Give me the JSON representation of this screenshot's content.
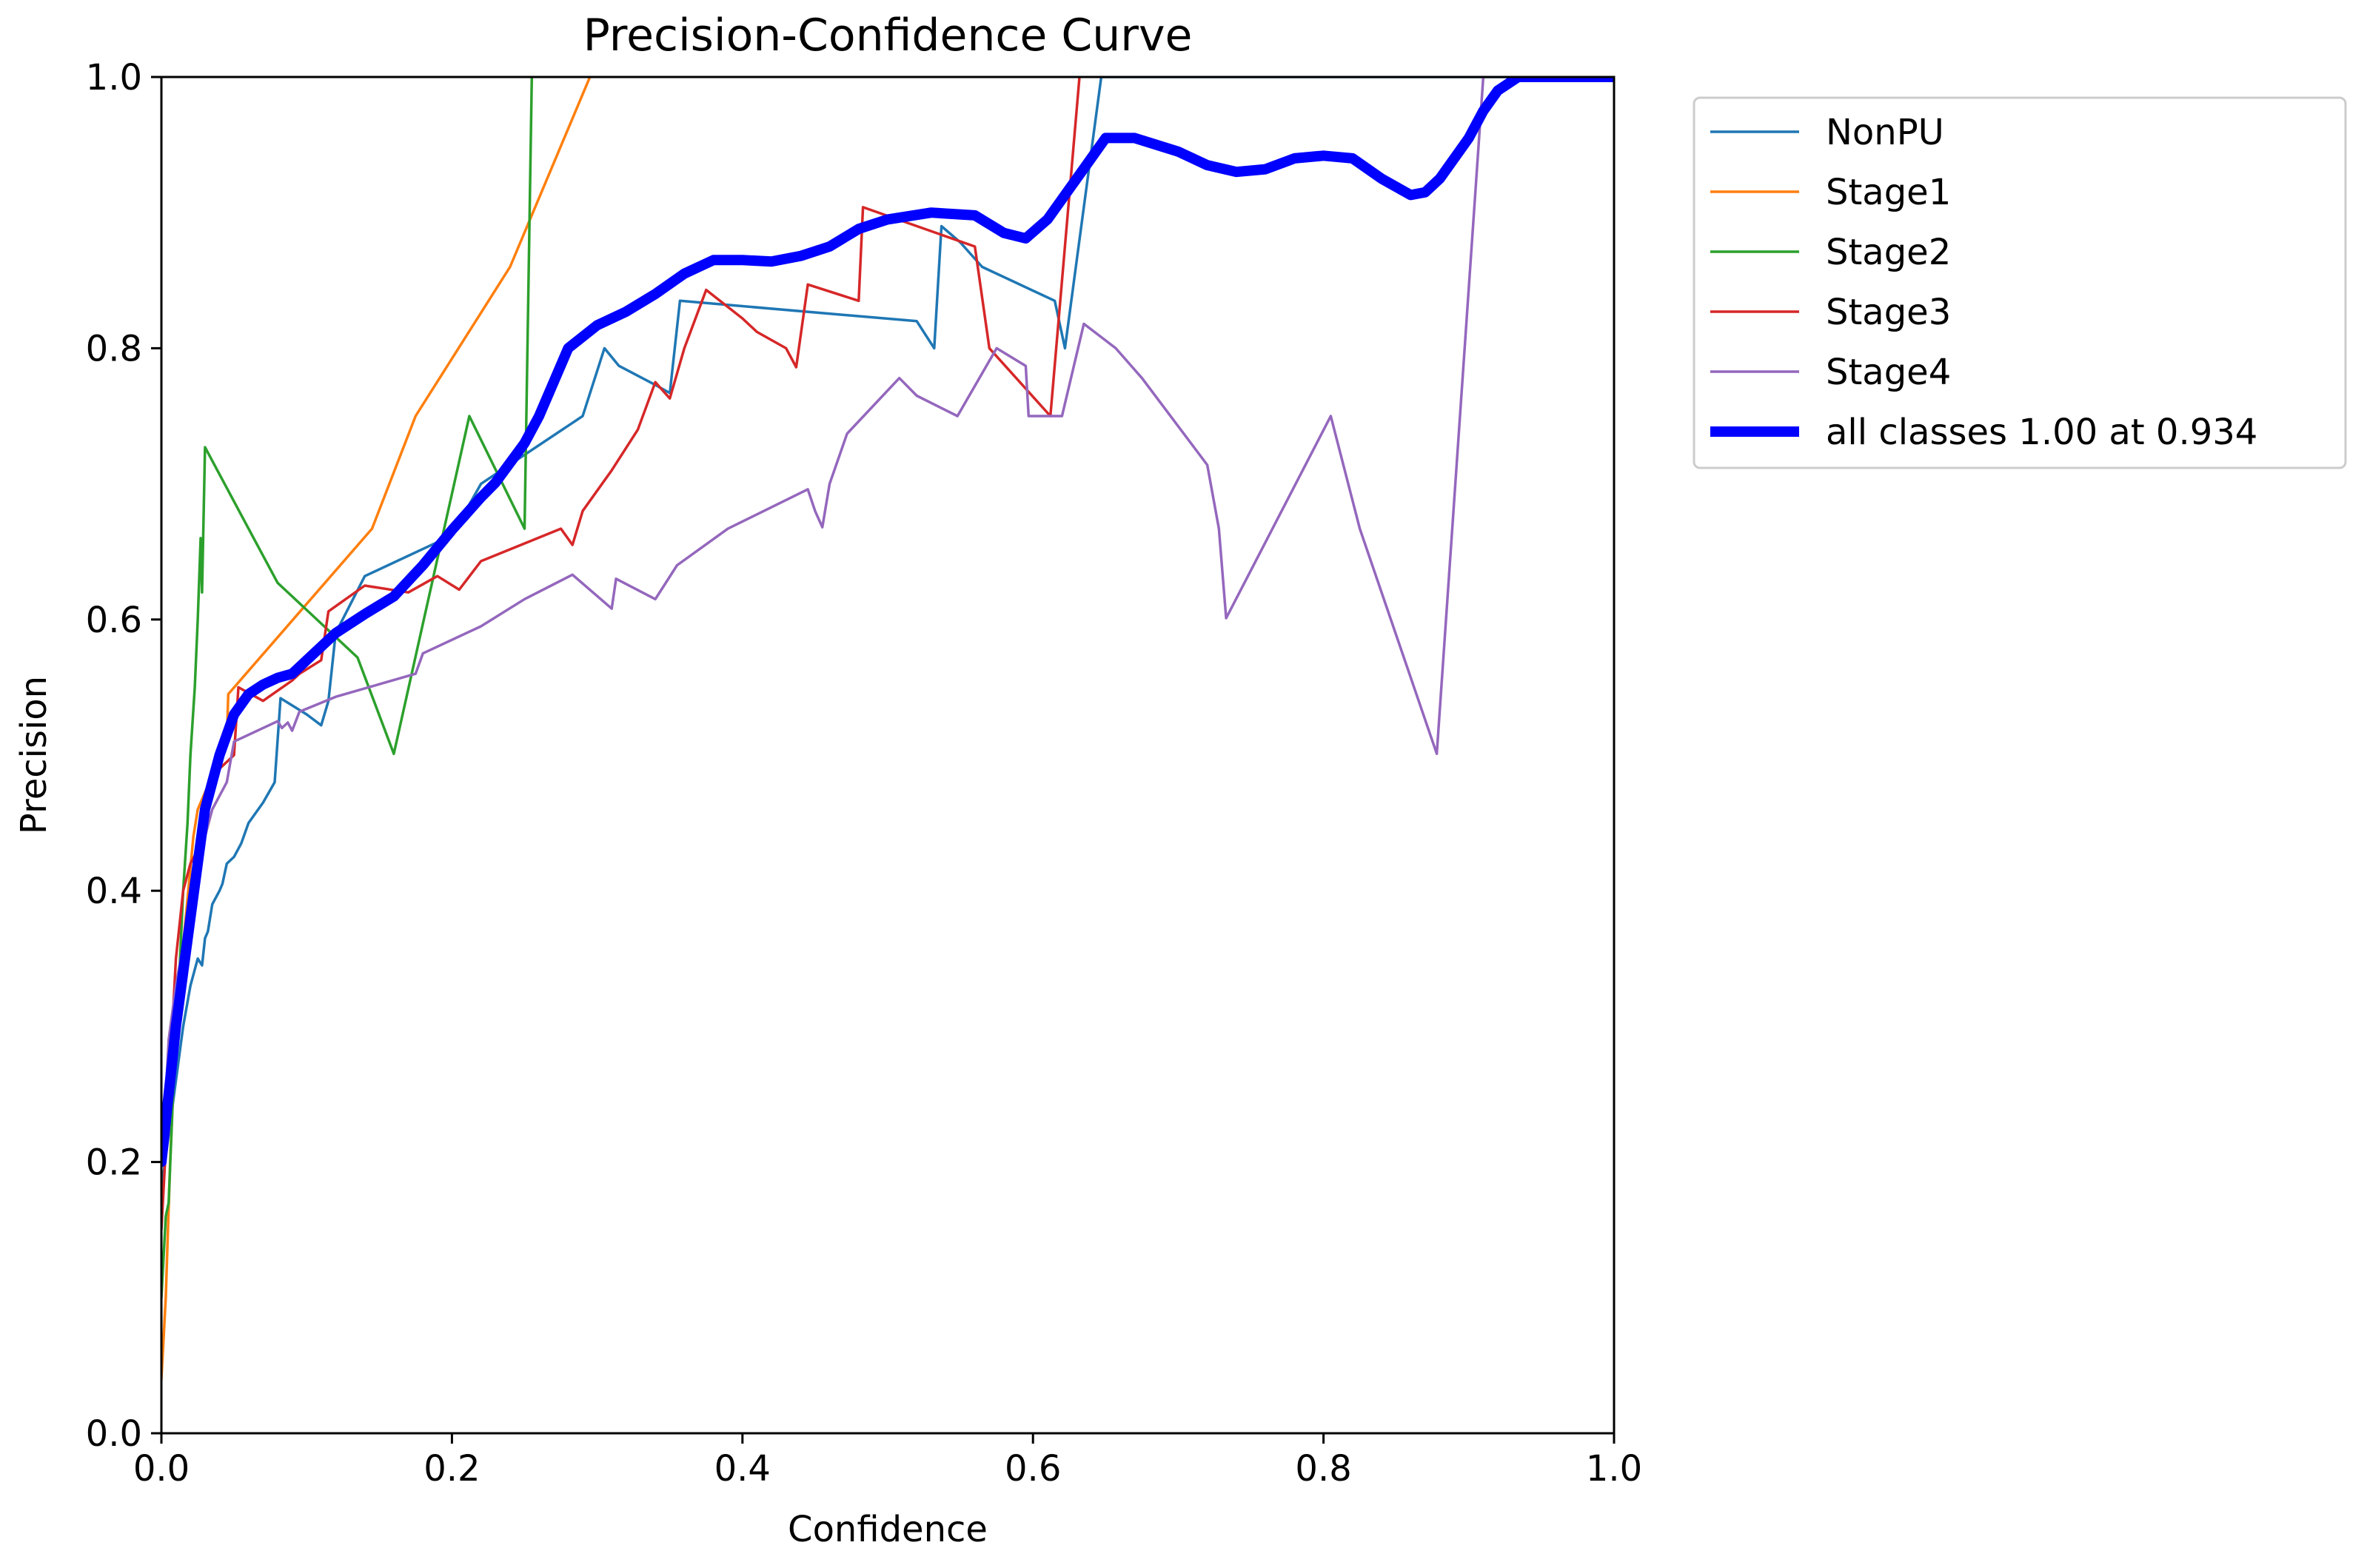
{
  "chart_data": {
    "type": "line",
    "title": "Precision-Confidence Curve",
    "xlabel": "Confidence",
    "ylabel": "Precision",
    "xlim": [
      0,
      1
    ],
    "ylim": [
      0,
      1
    ],
    "xticks": [
      "0.0",
      "0.2",
      "0.4",
      "0.6",
      "0.8",
      "1.0"
    ],
    "yticks": [
      "0.0",
      "0.2",
      "0.4",
      "0.6",
      "0.8",
      "1.0"
    ],
    "grid": false,
    "legend_position": "outside-top-right",
    "series": [
      {
        "name": "NonPU",
        "color": "#1f77b4",
        "points": [
          [
            0.0,
            0.18
          ],
          [
            0.005,
            0.22
          ],
          [
            0.01,
            0.26
          ],
          [
            0.015,
            0.3
          ],
          [
            0.02,
            0.33
          ],
          [
            0.025,
            0.35
          ],
          [
            0.028,
            0.345
          ],
          [
            0.03,
            0.365
          ],
          [
            0.032,
            0.37
          ],
          [
            0.035,
            0.39
          ],
          [
            0.04,
            0.4
          ],
          [
            0.042,
            0.405
          ],
          [
            0.045,
            0.42
          ],
          [
            0.05,
            0.425
          ],
          [
            0.055,
            0.435
          ],
          [
            0.06,
            0.45
          ],
          [
            0.07,
            0.465
          ],
          [
            0.078,
            0.48
          ],
          [
            0.082,
            0.542
          ],
          [
            0.1,
            0.53
          ],
          [
            0.11,
            0.522
          ],
          [
            0.115,
            0.54
          ],
          [
            0.12,
            0.59
          ],
          [
            0.14,
            0.632
          ],
          [
            0.2,
            0.662
          ],
          [
            0.22,
            0.7
          ],
          [
            0.29,
            0.75
          ],
          [
            0.305,
            0.8
          ],
          [
            0.315,
            0.787
          ],
          [
            0.34,
            0.773
          ],
          [
            0.35,
            0.767
          ],
          [
            0.357,
            0.835
          ],
          [
            0.52,
            0.82
          ],
          [
            0.532,
            0.8
          ],
          [
            0.537,
            0.89
          ],
          [
            0.55,
            0.878
          ],
          [
            0.565,
            0.86
          ],
          [
            0.615,
            0.835
          ],
          [
            0.622,
            0.8
          ],
          [
            0.647,
            1.0
          ],
          [
            1.0,
            1.0
          ]
        ]
      },
      {
        "name": "Stage1",
        "color": "#ff7f0e",
        "points": [
          [
            0.0,
            0.04
          ],
          [
            0.003,
            0.1
          ],
          [
            0.006,
            0.2
          ],
          [
            0.01,
            0.3
          ],
          [
            0.015,
            0.36
          ],
          [
            0.022,
            0.44
          ],
          [
            0.025,
            0.46
          ],
          [
            0.045,
            0.51
          ],
          [
            0.046,
            0.545
          ],
          [
            0.145,
            0.667
          ],
          [
            0.175,
            0.75
          ],
          [
            0.24,
            0.86
          ],
          [
            0.295,
            1.0
          ]
        ]
      },
      {
        "name": "Stage2",
        "color": "#2ca02c",
        "points": [
          [
            0.0,
            0.1
          ],
          [
            0.003,
            0.16
          ],
          [
            0.005,
            0.17
          ],
          [
            0.008,
            0.25
          ],
          [
            0.012,
            0.33
          ],
          [
            0.015,
            0.4
          ],
          [
            0.018,
            0.45
          ],
          [
            0.02,
            0.5
          ],
          [
            0.023,
            0.55
          ],
          [
            0.025,
            0.6
          ],
          [
            0.027,
            0.66
          ],
          [
            0.028,
            0.62
          ],
          [
            0.03,
            0.727
          ],
          [
            0.06,
            0.667
          ],
          [
            0.08,
            0.627
          ],
          [
            0.135,
            0.572
          ],
          [
            0.16,
            0.501
          ],
          [
            0.212,
            0.75
          ],
          [
            0.25,
            0.667
          ],
          [
            0.255,
            1.0
          ]
        ]
      },
      {
        "name": "Stage3",
        "color": "#d62728",
        "points": [
          [
            0.0,
            0.15
          ],
          [
            0.005,
            0.25
          ],
          [
            0.01,
            0.35
          ],
          [
            0.015,
            0.4
          ],
          [
            0.02,
            0.42
          ],
          [
            0.025,
            0.43
          ],
          [
            0.03,
            0.45
          ],
          [
            0.04,
            0.49
          ],
          [
            0.05,
            0.5
          ],
          [
            0.053,
            0.55
          ],
          [
            0.07,
            0.54
          ],
          [
            0.09,
            0.555
          ],
          [
            0.095,
            0.56
          ],
          [
            0.11,
            0.57
          ],
          [
            0.115,
            0.606
          ],
          [
            0.14,
            0.625
          ],
          [
            0.17,
            0.62
          ],
          [
            0.19,
            0.632
          ],
          [
            0.205,
            0.622
          ],
          [
            0.22,
            0.643
          ],
          [
            0.275,
            0.667
          ],
          [
            0.283,
            0.655
          ],
          [
            0.29,
            0.68
          ],
          [
            0.31,
            0.71
          ],
          [
            0.328,
            0.74
          ],
          [
            0.34,
            0.775
          ],
          [
            0.35,
            0.763
          ],
          [
            0.36,
            0.8
          ],
          [
            0.375,
            0.843
          ],
          [
            0.4,
            0.822
          ],
          [
            0.41,
            0.812
          ],
          [
            0.43,
            0.8
          ],
          [
            0.437,
            0.786
          ],
          [
            0.445,
            0.847
          ],
          [
            0.48,
            0.835
          ],
          [
            0.483,
            0.904
          ],
          [
            0.56,
            0.875
          ],
          [
            0.57,
            0.8
          ],
          [
            0.612,
            0.75
          ],
          [
            0.632,
            1.0
          ]
        ]
      },
      {
        "name": "Stage4",
        "color": "#9467bd",
        "points": [
          [
            0.0,
            0.2
          ],
          [
            0.003,
            0.25
          ],
          [
            0.005,
            0.29
          ],
          [
            0.01,
            0.33
          ],
          [
            0.015,
            0.36
          ],
          [
            0.02,
            0.38
          ],
          [
            0.025,
            0.42
          ],
          [
            0.03,
            0.44
          ],
          [
            0.035,
            0.46
          ],
          [
            0.045,
            0.48
          ],
          [
            0.05,
            0.51
          ],
          [
            0.08,
            0.525
          ],
          [
            0.083,
            0.52
          ],
          [
            0.087,
            0.524
          ],
          [
            0.09,
            0.518
          ],
          [
            0.095,
            0.532
          ],
          [
            0.12,
            0.543
          ],
          [
            0.175,
            0.56
          ],
          [
            0.18,
            0.575
          ],
          [
            0.22,
            0.595
          ],
          [
            0.25,
            0.615
          ],
          [
            0.283,
            0.633
          ],
          [
            0.31,
            0.608
          ],
          [
            0.313,
            0.63
          ],
          [
            0.34,
            0.615
          ],
          [
            0.355,
            0.64
          ],
          [
            0.39,
            0.667
          ],
          [
            0.445,
            0.696
          ],
          [
            0.45,
            0.68
          ],
          [
            0.455,
            0.668
          ],
          [
            0.46,
            0.7
          ],
          [
            0.472,
            0.737
          ],
          [
            0.508,
            0.778
          ],
          [
            0.52,
            0.765
          ],
          [
            0.548,
            0.75
          ],
          [
            0.575,
            0.8
          ],
          [
            0.595,
            0.787
          ],
          [
            0.597,
            0.75
          ],
          [
            0.62,
            0.75
          ],
          [
            0.635,
            0.818
          ],
          [
            0.657,
            0.8
          ],
          [
            0.675,
            0.778
          ],
          [
            0.72,
            0.714
          ],
          [
            0.728,
            0.667
          ],
          [
            0.733,
            0.601
          ],
          [
            0.805,
            0.75
          ],
          [
            0.825,
            0.667
          ],
          [
            0.878,
            0.501
          ],
          [
            0.91,
            1.0
          ]
        ]
      },
      {
        "name": "all classes 1.00 at 0.934",
        "color": "#0000ff",
        "bold": true,
        "points": [
          [
            0.0,
            0.2
          ],
          [
            0.01,
            0.3
          ],
          [
            0.02,
            0.38
          ],
          [
            0.03,
            0.46
          ],
          [
            0.04,
            0.5
          ],
          [
            0.05,
            0.53
          ],
          [
            0.06,
            0.545
          ],
          [
            0.07,
            0.552
          ],
          [
            0.08,
            0.557
          ],
          [
            0.09,
            0.56
          ],
          [
            0.1,
            0.57
          ],
          [
            0.12,
            0.59
          ],
          [
            0.14,
            0.604
          ],
          [
            0.16,
            0.617
          ],
          [
            0.18,
            0.64
          ],
          [
            0.2,
            0.666
          ],
          [
            0.22,
            0.69
          ],
          [
            0.23,
            0.701
          ],
          [
            0.25,
            0.73
          ],
          [
            0.26,
            0.75
          ],
          [
            0.28,
            0.8
          ],
          [
            0.3,
            0.817
          ],
          [
            0.32,
            0.827
          ],
          [
            0.34,
            0.84
          ],
          [
            0.36,
            0.855
          ],
          [
            0.38,
            0.865
          ],
          [
            0.4,
            0.865
          ],
          [
            0.42,
            0.864
          ],
          [
            0.44,
            0.868
          ],
          [
            0.46,
            0.875
          ],
          [
            0.48,
            0.888
          ],
          [
            0.5,
            0.895
          ],
          [
            0.53,
            0.9
          ],
          [
            0.56,
            0.898
          ],
          [
            0.58,
            0.885
          ],
          [
            0.595,
            0.881
          ],
          [
            0.61,
            0.895
          ],
          [
            0.63,
            0.925
          ],
          [
            0.65,
            0.955
          ],
          [
            0.67,
            0.955
          ],
          [
            0.7,
            0.945
          ],
          [
            0.72,
            0.935
          ],
          [
            0.74,
            0.93
          ],
          [
            0.76,
            0.932
          ],
          [
            0.78,
            0.94
          ],
          [
            0.8,
            0.942
          ],
          [
            0.82,
            0.94
          ],
          [
            0.84,
            0.925
          ],
          [
            0.86,
            0.913
          ],
          [
            0.87,
            0.915
          ],
          [
            0.88,
            0.925
          ],
          [
            0.9,
            0.955
          ],
          [
            0.91,
            0.975
          ],
          [
            0.92,
            0.99
          ],
          [
            0.934,
            1.0
          ],
          [
            1.0,
            1.0
          ]
        ]
      }
    ]
  }
}
